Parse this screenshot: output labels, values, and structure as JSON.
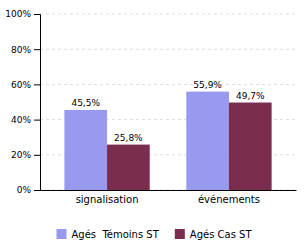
{
  "chart_data": {
    "type": "bar",
    "categories": [
      "signalisation",
      "événements"
    ],
    "series": [
      {
        "name": "Agés  Témoins ST",
        "color": "#9999EE",
        "values": [
          45.5,
          55.9
        ],
        "value_labels": [
          "45,5%",
          "55,9%"
        ]
      },
      {
        "name": "Agés Cas ST",
        "color": "#7B2D4E",
        "values": [
          25.8,
          49.7
        ],
        "value_labels": [
          "25,8%",
          "49,7%"
        ]
      }
    ],
    "ylim": [
      0,
      100
    ],
    "yticks": [
      {
        "value": 0,
        "label": "0%"
      },
      {
        "value": 20,
        "label": "20%"
      },
      {
        "value": 40,
        "label": "40%"
      },
      {
        "value": 60,
        "label": "60%"
      },
      {
        "value": 80,
        "label": "80%"
      },
      {
        "value": 100,
        "label": "100%"
      }
    ],
    "grid": true,
    "legend": "bottom",
    "data_labels": true
  }
}
